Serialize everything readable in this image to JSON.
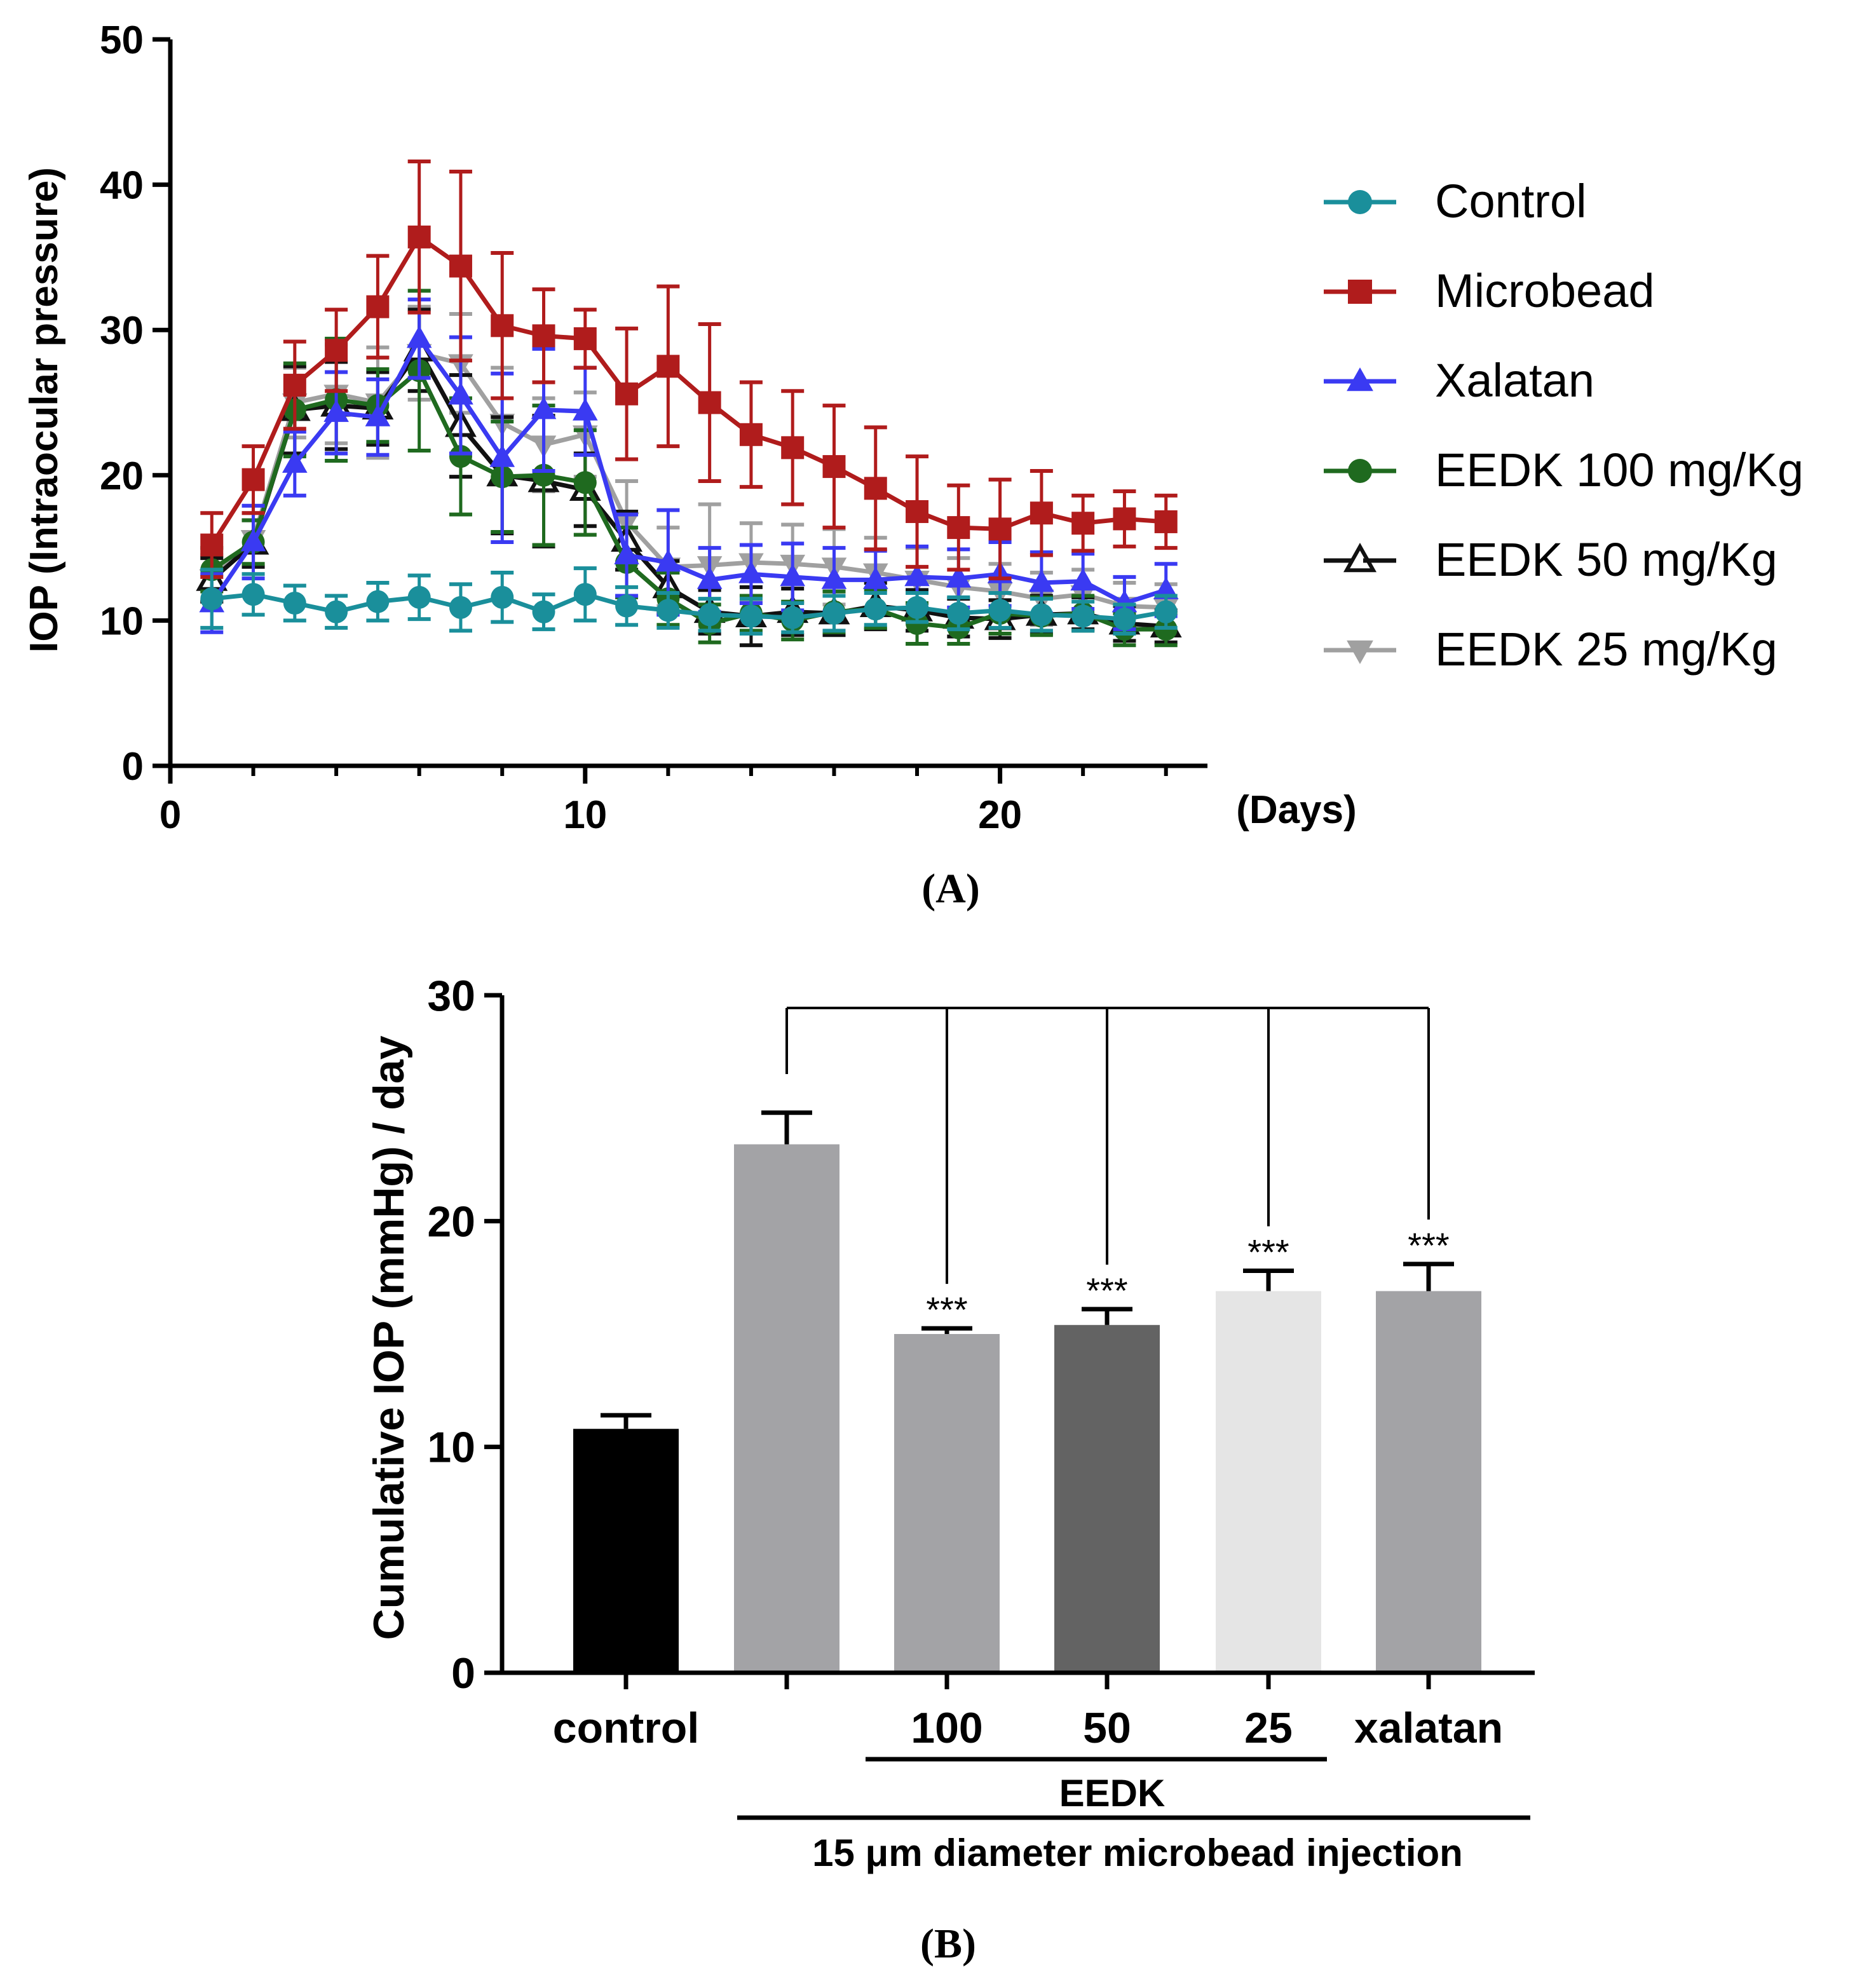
{
  "chart_data": [
    {
      "panel": "(A)",
      "type": "line",
      "title": "",
      "xlabel": "(Days)",
      "ylabel": "IOP  (Intraocular pressure)",
      "xlim": [
        0,
        25
      ],
      "ylim": [
        0,
        50
      ],
      "x_ticks": [
        "0",
        "10",
        "20"
      ],
      "y_ticks": [
        "0",
        "10",
        "20",
        "30",
        "40",
        "50"
      ],
      "legend_position": "right",
      "x": [
        1,
        2,
        3,
        4,
        5,
        6,
        7,
        8,
        9,
        10,
        11,
        12,
        13,
        14,
        15,
        16,
        17,
        18,
        19,
        20,
        21,
        22,
        23,
        24
      ],
      "series": [
        {
          "name": "Control",
          "marker": "circle",
          "color": "#1a8f9b",
          "values": [
            11.5,
            11.8,
            11.2,
            10.6,
            11.3,
            11.6,
            10.9,
            11.6,
            10.6,
            11.8,
            11.0,
            10.7,
            10.4,
            10.3,
            10.2,
            10.5,
            10.8,
            10.9,
            10.5,
            10.7,
            10.4,
            10.3,
            10.1,
            10.6
          ],
          "errors": [
            2.0,
            1.4,
            1.2,
            1.1,
            1.3,
            1.5,
            1.6,
            1.7,
            1.2,
            1.8,
            1.3,
            1.2,
            1.1,
            1.2,
            1.0,
            1.2,
            1.1,
            1.0,
            1.1,
            1.2,
            1.1,
            1.0,
            1.0,
            1.1
          ]
        },
        {
          "name": "Microbead",
          "marker": "square",
          "color": "#b01c1c",
          "values": [
            15.2,
            19.7,
            26.2,
            28.6,
            31.6,
            36.4,
            34.4,
            30.3,
            29.6,
            29.4,
            25.6,
            27.5,
            25.0,
            22.8,
            21.9,
            20.6,
            19.1,
            17.5,
            16.4,
            16.3,
            17.4,
            16.7,
            17.0,
            16.8
          ],
          "errors": [
            2.2,
            2.3,
            3.0,
            2.8,
            3.5,
            5.2,
            6.5,
            5.0,
            3.2,
            2.0,
            4.5,
            5.5,
            5.4,
            3.6,
            3.9,
            4.2,
            4.2,
            3.8,
            2.9,
            3.4,
            2.9,
            1.9,
            1.9,
            1.8
          ]
        },
        {
          "name": "Xalatan",
          "marker": "triangle-up",
          "color": "#3a3af2",
          "values": [
            11.2,
            15.4,
            20.8,
            24.3,
            24.0,
            29.4,
            25.5,
            21.2,
            24.5,
            24.4,
            14.5,
            14.0,
            12.8,
            13.2,
            13.0,
            12.8,
            12.8,
            13.0,
            12.9,
            13.2,
            12.6,
            12.7,
            11.2,
            12.1
          ],
          "errors": [
            2.0,
            2.5,
            2.2,
            2.8,
            2.6,
            2.7,
            4.0,
            5.8,
            4.2,
            3.0,
            2.8,
            3.6,
            2.2,
            2.0,
            2.3,
            2.2,
            2.0,
            2.1,
            2.0,
            2.2,
            2.1,
            1.9,
            1.8,
            1.8
          ]
        },
        {
          "name": "EEDK 100 mg/Kg",
          "marker": "circle",
          "color": "#1f6a1f",
          "values": [
            13.5,
            15.4,
            24.5,
            25.2,
            24.8,
            27.2,
            21.3,
            19.9,
            20.0,
            19.5,
            14.0,
            11.5,
            9.8,
            10.5,
            10.0,
            10.6,
            10.8,
            9.8,
            9.5,
            10.5,
            10.3,
            10.5,
            9.4,
            9.4
          ],
          "errors": [
            1.5,
            1.5,
            3.2,
            4.2,
            2.5,
            5.5,
            4.0,
            3.8,
            4.8,
            3.6,
            2.4,
            1.8,
            1.3,
            1.2,
            1.3,
            1.4,
            1.3,
            1.4,
            1.1,
            1.4,
            1.3,
            1.2,
            1.1,
            1.1
          ]
        },
        {
          "name": "EEDK 50 mg/Kg",
          "marker": "triangle-up-open",
          "color": "#111111",
          "values": [
            12.8,
            15.3,
            24.5,
            24.8,
            24.6,
            28.6,
            23.4,
            20.0,
            19.6,
            19.0,
            15.5,
            12.3,
            10.6,
            10.3,
            10.6,
            10.5,
            11.0,
            10.7,
            10.2,
            10.1,
            10.4,
            10.5,
            9.8,
            9.6
          ],
          "errors": [
            1.5,
            1.6,
            3.0,
            3.0,
            2.5,
            2.8,
            3.5,
            4.0,
            4.5,
            2.5,
            2.0,
            1.8,
            1.5,
            2.0,
            1.6,
            1.5,
            1.6,
            1.4,
            1.3,
            1.3,
            1.3,
            1.1,
            1.2,
            1.1
          ]
        },
        {
          "name": "EEDK 25 mg/Kg",
          "marker": "triangle-down",
          "color": "#a0a0a0",
          "values": [
            12.9,
            15.6,
            25.0,
            25.6,
            25.0,
            28.4,
            27.7,
            23.6,
            22.1,
            22.8,
            16.8,
            13.7,
            13.8,
            14.0,
            13.9,
            13.7,
            13.3,
            12.8,
            12.3,
            12.0,
            11.5,
            11.8,
            11.0,
            10.9
          ],
          "errors": [
            1.6,
            1.8,
            2.4,
            3.4,
            3.8,
            3.2,
            3.4,
            3.8,
            3.2,
            2.9,
            2.8,
            2.7,
            4.2,
            2.7,
            2.7,
            2.6,
            2.4,
            2.2,
            2.0,
            1.9,
            1.8,
            1.7,
            1.6,
            1.6
          ]
        }
      ]
    },
    {
      "panel": "(B)",
      "type": "bar",
      "title": "",
      "xlabel": "",
      "ylabel": "Cumulative IOP (mmHg) / day",
      "ylim": [
        0,
        30
      ],
      "y_ticks": [
        "0",
        "10",
        "20",
        "30"
      ],
      "categories": [
        "control",
        "",
        "100",
        "50",
        "25",
        "xalatan"
      ],
      "values": [
        10.8,
        23.4,
        15.0,
        15.4,
        16.9,
        16.9
      ],
      "errors": [
        0.6,
        1.4,
        0.25,
        0.7,
        0.9,
        1.2
      ],
      "colors": [
        "#000000",
        "#a3a3a6",
        "#a3a3a6",
        "#636363",
        "#e5e5e5",
        "#a3a3a6"
      ],
      "significance": [
        "",
        "",
        "***",
        "***",
        "***",
        "***"
      ],
      "comparison_reference_index": 1,
      "group_labels": {
        "eedk": "EEDK",
        "injection": "15 μm diameter microbead injection"
      }
    }
  ]
}
